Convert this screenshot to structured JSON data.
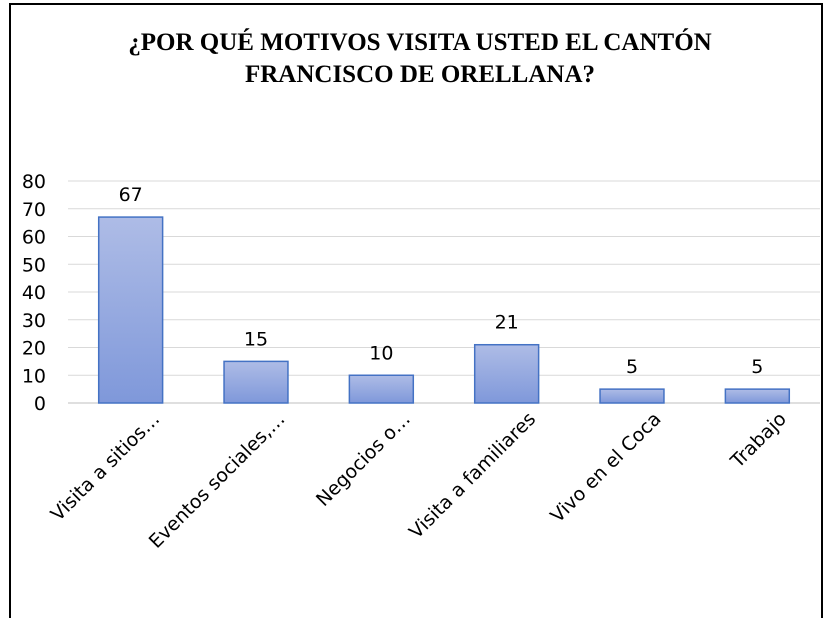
{
  "chart_data": {
    "type": "bar",
    "title": [
      "¿POR QUÉ MOTIVOS VISITA USTED EL CANTÓN",
      "FRANCISCO DE ORELLANA?"
    ],
    "categories": [
      "Visita a sitios…",
      "Eventos sociales,…",
      "Negocios o…",
      "Visita a familiares",
      "Vivo en el Coca",
      "Trabajo"
    ],
    "values": [
      67,
      15,
      10,
      21,
      5,
      5
    ],
    "color": "#4472c4",
    "ylim": [
      0,
      80
    ],
    "yticks": [
      0,
      10,
      20,
      30,
      40,
      50,
      60,
      70,
      80
    ],
    "grid": true
  }
}
